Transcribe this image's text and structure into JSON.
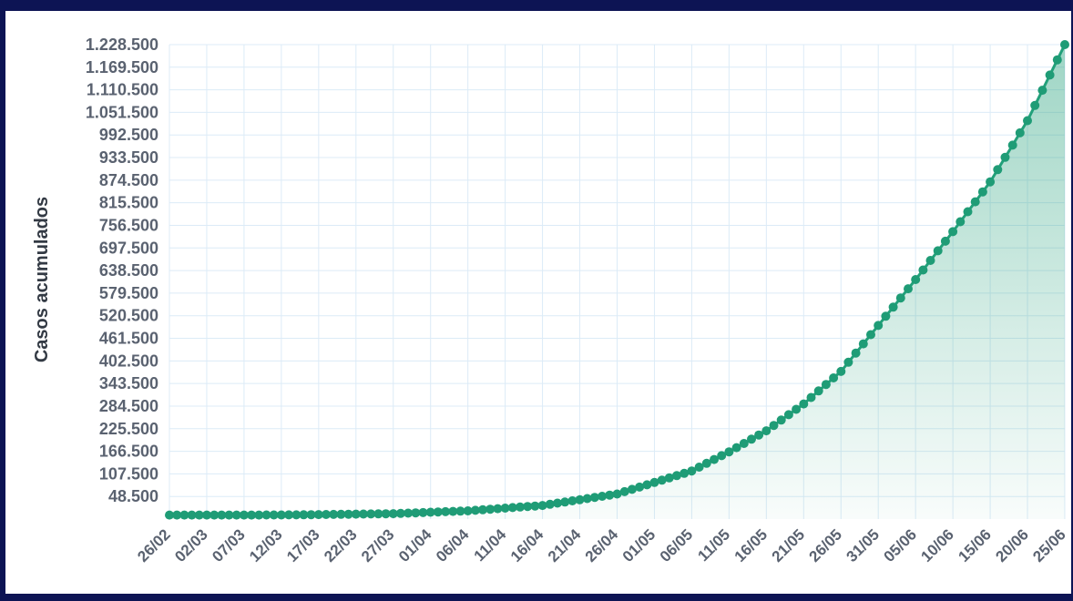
{
  "chart_data": {
    "type": "area",
    "title": "",
    "ylabel": "Casos acumulados",
    "xlabel": "",
    "grid": true,
    "legend": "none",
    "colors": {
      "line": "#22a07a",
      "point": "#1f9c76",
      "fill": "#2aa37e",
      "grid": "#dcebf7",
      "tick": "#5a6270"
    },
    "ylim": [
      -10500,
      1228500
    ],
    "y_ticks": [
      "48.500",
      "107.500",
      "166.500",
      "225.500",
      "284.500",
      "343.500",
      "402.500",
      "461.500",
      "520.500",
      "579.500",
      "638.500",
      "697.500",
      "756.500",
      "815.500",
      "874.500",
      "933.500",
      "992.500",
      "1.051.500",
      "1.110.500",
      "1.169.500",
      "1.228.500"
    ],
    "x_ticks": [
      "26/02",
      "02/03",
      "07/03",
      "12/03",
      "17/03",
      "22/03",
      "27/03",
      "01/04",
      "06/04",
      "11/04",
      "16/04",
      "21/04",
      "26/04",
      "01/05",
      "06/05",
      "11/05",
      "16/05",
      "21/05",
      "26/05",
      "31/05",
      "05/06",
      "10/06",
      "15/06",
      "20/06",
      "25/06"
    ],
    "x_start": "2020-02-26",
    "x_end": "2020-06-25",
    "anchors": [
      [
        "2020-02-26",
        0
      ],
      [
        "2020-03-12",
        100
      ],
      [
        "2020-03-27",
        3500
      ],
      [
        "2020-04-06",
        11000
      ],
      [
        "2020-04-16",
        25000
      ],
      [
        "2020-04-26",
        55000
      ],
      [
        "2020-05-01",
        85000
      ],
      [
        "2020-05-06",
        115000
      ],
      [
        "2020-05-11",
        165000
      ],
      [
        "2020-05-16",
        220000
      ],
      [
        "2020-05-21",
        290000
      ],
      [
        "2020-05-26",
        375000
      ],
      [
        "2020-05-31",
        495000
      ],
      [
        "2020-06-05",
        615000
      ],
      [
        "2020-06-10",
        740000
      ],
      [
        "2020-06-15",
        870000
      ],
      [
        "2020-06-20",
        1030000
      ],
      [
        "2020-06-25",
        1228500
      ]
    ]
  }
}
